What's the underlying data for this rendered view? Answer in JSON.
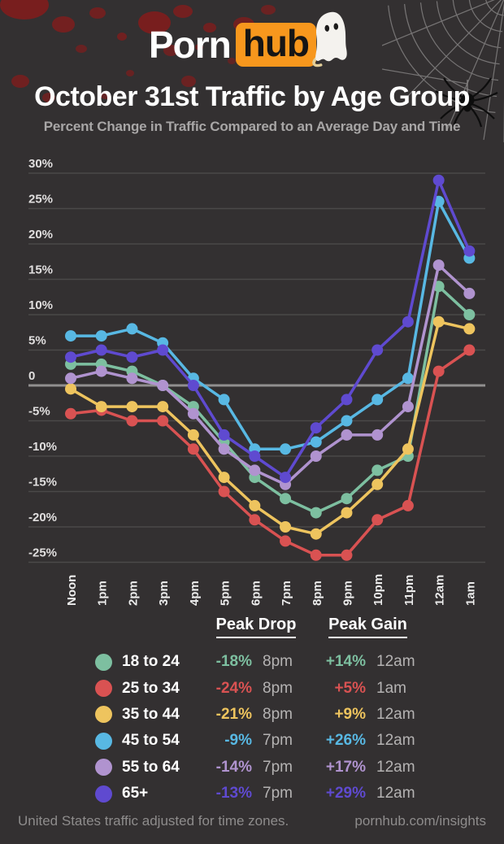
{
  "brand": {
    "porn": "Porn",
    "hub": "hub"
  },
  "header": {
    "title": "October 31st Traffic by Age Group",
    "subtitle": "Percent Change in Traffic Compared to an Average Day and Time"
  },
  "chart_data": {
    "type": "line",
    "categories": [
      "Noon",
      "1pm",
      "2pm",
      "3pm",
      "4pm",
      "5pm",
      "6pm",
      "7pm",
      "8pm",
      "9pm",
      "10pm",
      "11pm",
      "12am",
      "1am"
    ],
    "series": [
      {
        "name": "18 to 24",
        "color": "#7dbfa0",
        "values": [
          3,
          3,
          2,
          0,
          -3,
          -8,
          -13,
          -16,
          -18,
          -16,
          -12,
          -10,
          14,
          10
        ]
      },
      {
        "name": "25 to 34",
        "color": "#d95252",
        "values": [
          -4,
          -3.5,
          -5,
          -5,
          -9,
          -15,
          -19,
          -22,
          -24,
          -24,
          -19,
          -17,
          2,
          5
        ]
      },
      {
        "name": "35 to 44",
        "color": "#eec45e",
        "values": [
          -0.5,
          -3,
          -3,
          -3,
          -7,
          -13,
          -17,
          -20,
          -21,
          -18,
          -14,
          -9,
          9,
          8
        ]
      },
      {
        "name": "45 to 54",
        "color": "#58b8e3",
        "values": [
          7,
          7,
          8,
          6,
          1,
          -2,
          -9,
          -9,
          -8,
          -5,
          -2,
          1,
          26,
          18
        ]
      },
      {
        "name": "55 to 64",
        "color": "#b093cf",
        "values": [
          1,
          2,
          1,
          0,
          -4,
          -9,
          -12,
          -14,
          -10,
          -7,
          -7,
          -3,
          17,
          13
        ]
      },
      {
        "name": "65+",
        "color": "#5f4ad0",
        "values": [
          4,
          5,
          4,
          5,
          0,
          -7,
          -10,
          -13,
          -6,
          -2,
          5,
          9,
          29,
          19
        ]
      }
    ],
    "title": "October 31st Traffic by Age Group",
    "xlabel": "",
    "ylabel": "",
    "ylim": [
      -25,
      30
    ],
    "ytick_step": 5,
    "grid": true,
    "zero_line_emphasized": true,
    "legend_position": "bottom"
  },
  "legend": {
    "drop_header": "Peak Drop",
    "gain_header": "Peak Gain",
    "rows": [
      {
        "label": "18 to 24",
        "color": "#7dbfa0",
        "drop": "-18%",
        "drop_time": "8pm",
        "gain": "+14%",
        "gain_time": "12am"
      },
      {
        "label": "25 to 34",
        "color": "#d95252",
        "drop": "-24%",
        "drop_time": "8pm",
        "gain": "+5%",
        "gain_time": "1am"
      },
      {
        "label": "35 to 44",
        "color": "#eec45e",
        "drop": "-21%",
        "drop_time": "8pm",
        "gain": "+9%",
        "gain_time": "12am"
      },
      {
        "label": "45 to 54",
        "color": "#58b8e3",
        "drop": "-9%",
        "drop_time": "7pm",
        "gain": "+26%",
        "gain_time": "12am"
      },
      {
        "label": "55 to 64",
        "color": "#b093cf",
        "drop": "-14%",
        "drop_time": "7pm",
        "gain": "+17%",
        "gain_time": "12am"
      },
      {
        "label": "65+",
        "color": "#5f4ad0",
        "drop": "-13%",
        "drop_time": "7pm",
        "gain": "+29%",
        "gain_time": "12am"
      }
    ]
  },
  "footer": {
    "left": "United States traffic adjusted for time zones.",
    "right": "pornhub.com/insights"
  }
}
